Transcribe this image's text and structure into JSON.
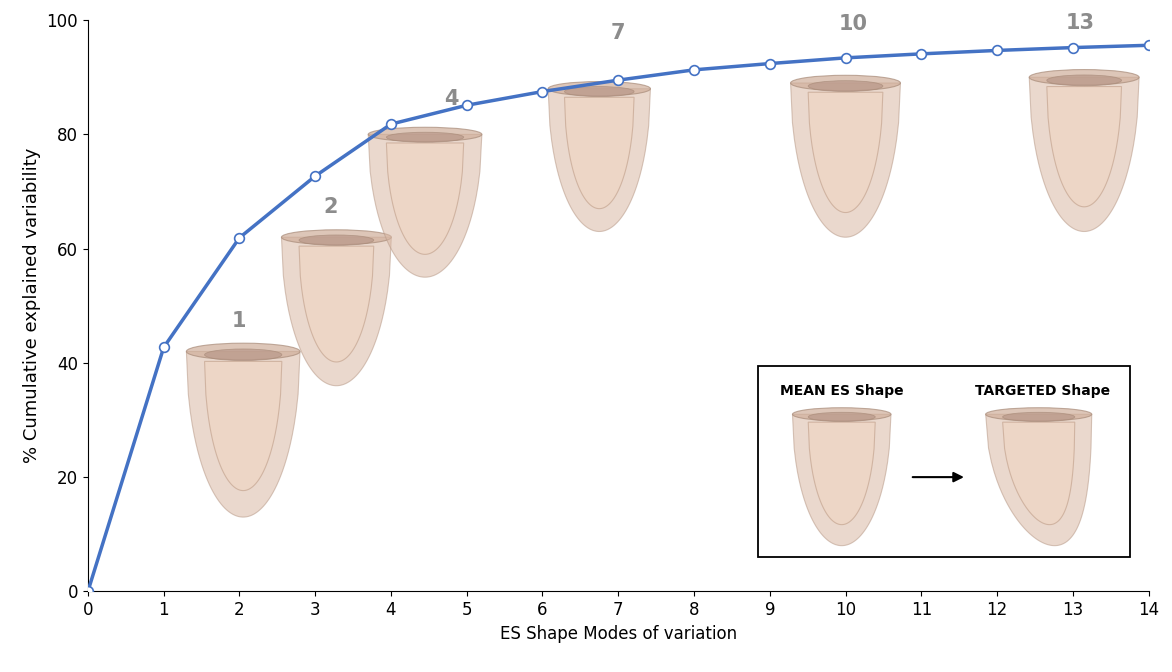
{
  "chart_data": {
    "type": "line",
    "x": [
      0,
      1,
      2,
      3,
      4,
      5,
      6,
      7,
      8,
      9,
      10,
      11,
      12,
      13,
      14
    ],
    "values": [
      0,
      42.7,
      61.9,
      72.7,
      81.8,
      85.1,
      87.5,
      89.5,
      91.3,
      92.4,
      93.4,
      94.1,
      94.7,
      95.2,
      95.6
    ],
    "color": "#4472c4",
    "marker": "o",
    "line_style": "solid",
    "xlabel": "ES Shape Modes of variation",
    "ylabel": "% Cumulative explained variability",
    "xlim": [
      0,
      14
    ],
    "ylim": [
      0,
      100
    ],
    "xticks": [
      0,
      1,
      2,
      3,
      4,
      5,
      6,
      7,
      8,
      9,
      10,
      11,
      12,
      13,
      14
    ],
    "yticks": [
      0,
      20,
      40,
      60,
      80,
      100
    ],
    "grid": false,
    "annotations": [
      "1",
      "2",
      "4",
      "7",
      "10",
      "13"
    ],
    "inset": {
      "left": "MEAN ES Shape",
      "right": "TARGETED Shape"
    }
  }
}
